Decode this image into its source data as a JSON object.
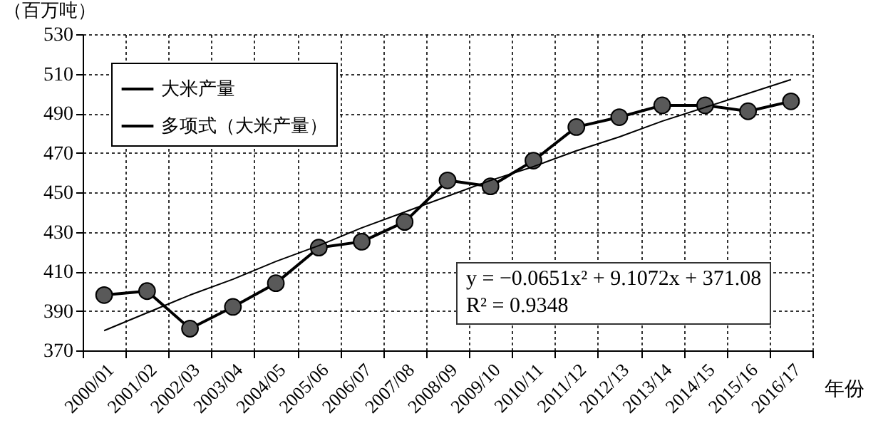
{
  "chart_data": {
    "type": "line",
    "ylabel": "（百万吨）",
    "xlabel": "年份",
    "categories": [
      "2000/01",
      "2001/02",
      "2002/03",
      "2003/04",
      "2004/05",
      "2005/06",
      "2006/07",
      "2007/08",
      "2008/09",
      "2009/10",
      "2010/11",
      "2011/12",
      "2012/13",
      "2013/14",
      "2014/15",
      "2015/16",
      "2016/17"
    ],
    "series": [
      {
        "name": "大米产量",
        "color": "#000000",
        "marker": "circle",
        "values": [
          398,
          400,
          381,
          392,
          404,
          422,
          425,
          435,
          456,
          453,
          466,
          483,
          488,
          494,
          494,
          491,
          496
        ]
      },
      {
        "name": "多项式（大米产量）",
        "color": "#000000",
        "marker": "none",
        "values": [
          380,
          389,
          398,
          406,
          415,
          423,
          432,
          440,
          448,
          456,
          463,
          471,
          478,
          486,
          493,
          500,
          507
        ]
      }
    ],
    "ylim": [
      370,
      530
    ],
    "yticks": [
      370,
      390,
      410,
      430,
      450,
      470,
      490,
      510,
      530
    ],
    "grid": true,
    "legend": "top left",
    "line_style": "solid",
    "annotations": [
      "y = −0.0651x² + 9.1072x + 371.08",
      "R² = 0.9348"
    ]
  }
}
